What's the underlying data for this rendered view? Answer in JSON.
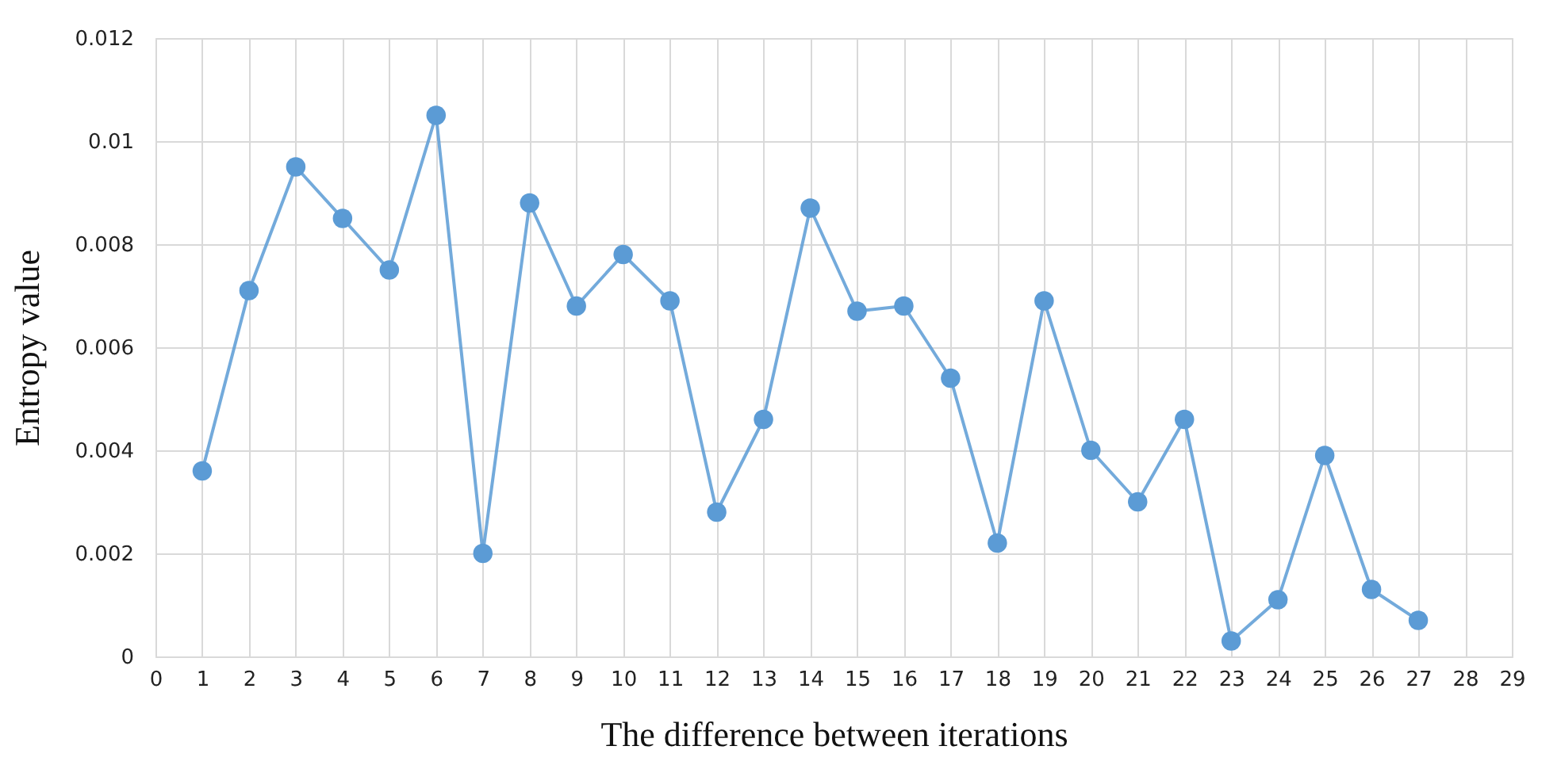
{
  "chart_data": {
    "type": "line",
    "xlabel": "The difference between iterations",
    "ylabel": "Entropy value",
    "x": [
      1,
      2,
      3,
      4,
      5,
      6,
      7,
      8,
      9,
      10,
      11,
      12,
      13,
      14,
      15,
      16,
      17,
      18,
      19,
      20,
      21,
      22,
      23,
      24,
      25,
      26,
      27
    ],
    "series": [
      {
        "color": "#5b9bd5",
        "values": [
          0.0036,
          0.0071,
          0.0095,
          0.0085,
          0.0075,
          0.0105,
          0.002,
          0.0088,
          0.0068,
          0.0078,
          0.0069,
          0.0028,
          0.0046,
          0.0087,
          0.0067,
          0.0068,
          0.0054,
          0.0022,
          0.0069,
          0.004,
          0.003,
          0.0046,
          0.0003,
          0.0011,
          0.0039,
          0.0013,
          0.0007
        ]
      }
    ],
    "xlim": [
      0,
      29
    ],
    "xticks": [
      0,
      1,
      2,
      3,
      4,
      5,
      6,
      7,
      8,
      9,
      10,
      11,
      12,
      13,
      14,
      15,
      16,
      17,
      18,
      19,
      20,
      21,
      22,
      23,
      24,
      25,
      26,
      27,
      28,
      29
    ],
    "ylim": [
      0,
      0.012
    ],
    "yticks": [
      0,
      0.002,
      0.004,
      0.006,
      0.008,
      0.01,
      0.012
    ],
    "grid": true,
    "marker": "circle",
    "line_style": "solid"
  }
}
